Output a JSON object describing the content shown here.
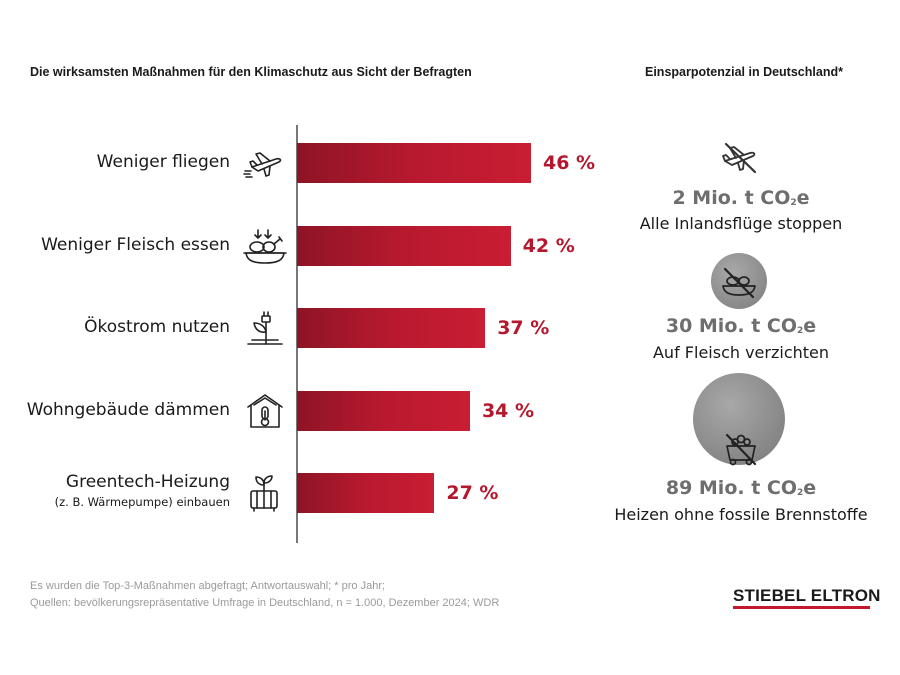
{
  "left_title": "Die wirksamsten Maßnahmen für den Klimaschutz aus Sicht der Befragten",
  "right_title": "Einsparpotenzial in Deutschland*",
  "chart_data": {
    "type": "bar",
    "orientation": "horizontal",
    "title": "Die wirksamsten Maßnahmen für den Klimaschutz aus Sicht der Befragten",
    "categories": [
      "Weniger fliegen",
      "Weniger Fleisch essen",
      "Ökostrom nutzen",
      "Wohngebäude dämmen",
      "Greentech-Heizung"
    ],
    "category_sublabels": [
      "",
      "",
      "",
      "",
      "(z. B. Wärmepumpe) einbauen"
    ],
    "values": [
      46,
      42,
      37,
      34,
      27
    ],
    "value_labels": [
      "46 %",
      "42 %",
      "37 %",
      "34 %",
      "27 %"
    ],
    "unit": "%",
    "xlim": [
      0,
      60
    ],
    "bar_color": "#b8192f",
    "grid": false
  },
  "category_icons": [
    "airplane-icon",
    "food-bowl-icon",
    "plant-plug-icon",
    "house-thermometer-icon",
    "heater-plant-icon"
  ],
  "savings": [
    {
      "icon": "no-flight-icon",
      "amount_prefix": "2 Mio. t CO",
      "amount_sub": "2",
      "amount_suffix": "e",
      "desc": "Alle Inlandsflüge stoppen",
      "circle_size": 0
    },
    {
      "icon": "no-meat-icon",
      "amount_prefix": "30 Mio. t CO",
      "amount_sub": "2",
      "amount_suffix": "e",
      "desc": "Auf Fleisch verzichten",
      "circle_size": 30
    },
    {
      "icon": "no-coal-icon",
      "amount_prefix": "89 Mio. t CO",
      "amount_sub": "2",
      "amount_suffix": "e",
      "desc": "Heizen ohne fossile Brennstoffe",
      "circle_size": 89
    }
  ],
  "footer": {
    "line1": "Es wurden die Top-3-Maßnahmen abgefragt; Antwortauswahl; * pro Jahr;",
    "line2": "Quellen: bevölkerungsrepräsentative Umfrage in Deutschland, n = 1.000, Dezember 2024; WDR"
  },
  "logo": "STIEBEL ELTRON",
  "colors": {
    "accent": "#b5182d",
    "bar_dark": "#8e1425",
    "circle_gray": "#8a8a8a",
    "amount_gray": "#6e6e6e"
  }
}
